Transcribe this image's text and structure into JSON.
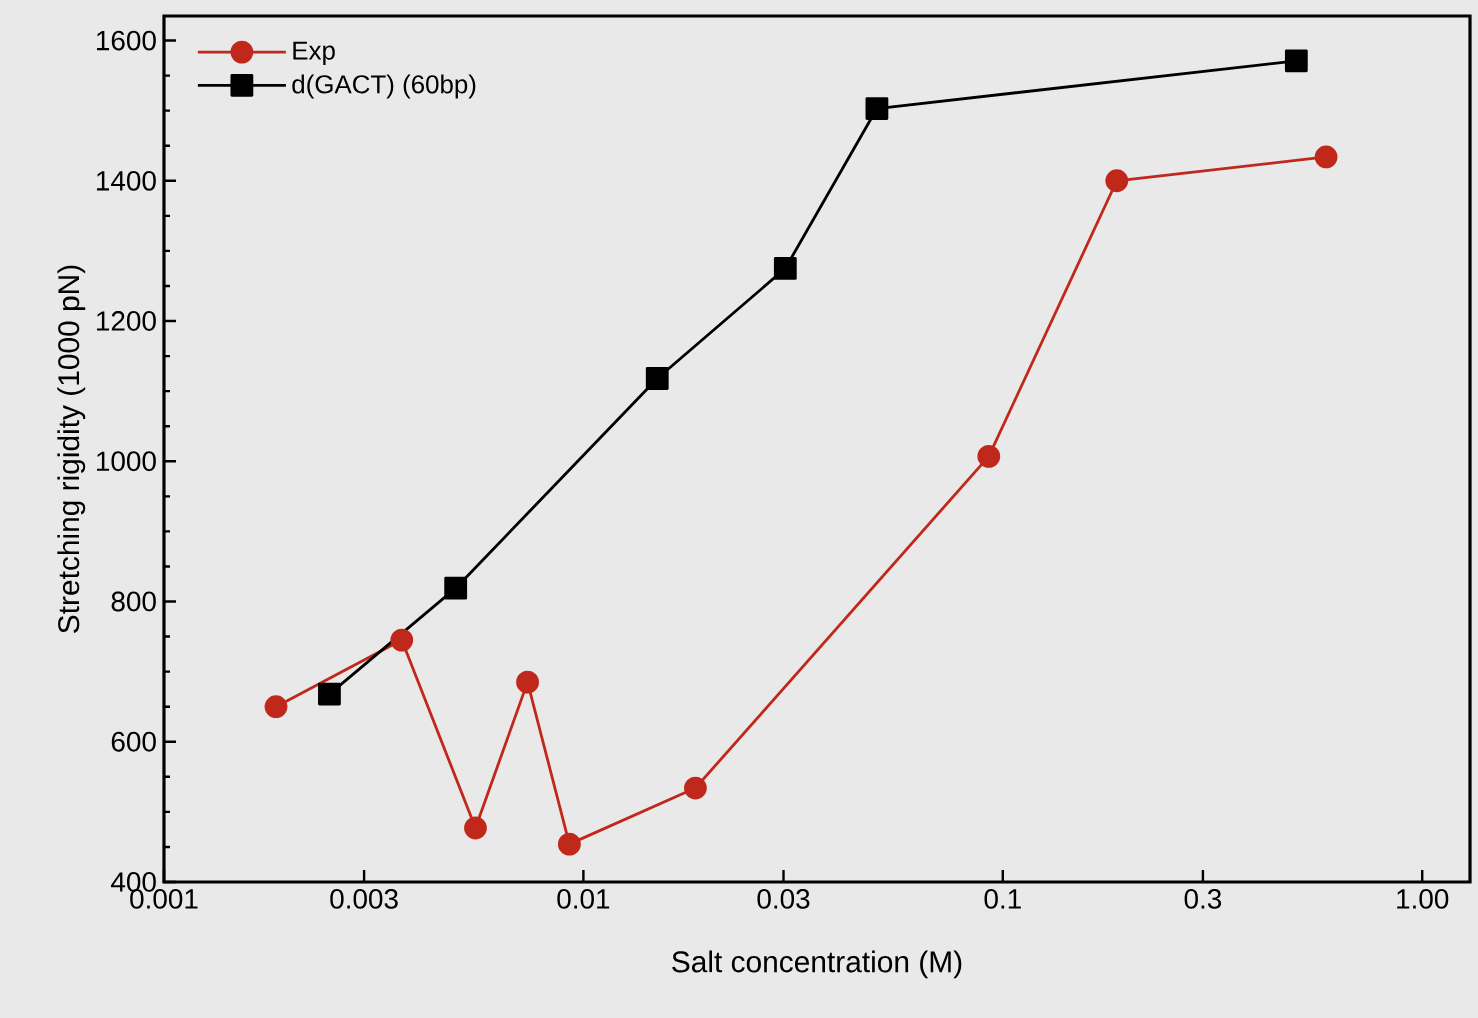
{
  "chart_data": {
    "type": "line",
    "xlabel": "Salt concentration (M)",
    "ylabel": "Stretching rigidity (1000 pN)",
    "log": "x",
    "xlim": [
      0.001,
      1.3
    ],
    "ylim": [
      400,
      1635
    ],
    "xticks": [
      0.001,
      0.003,
      0.01,
      0.03,
      0.1,
      0.3,
      {
        "value": 1,
        "label": "1.00"
      }
    ],
    "yticks": [
      400,
      600,
      800,
      1000,
      1200,
      1400,
      1600
    ],
    "grid": false,
    "legend": "top left",
    "line_style": "solid",
    "series": [
      {
        "name": "Exp",
        "color": "#c0281b",
        "marker": "circle",
        "x": [
          0.00185,
          0.00369,
          0.00553,
          0.00736,
          0.00926,
          0.0185,
          0.0926,
          0.187,
          0.59
        ],
        "values": [
          650,
          745,
          477,
          685,
          454,
          534,
          1007,
          1400,
          1434
        ]
      },
      {
        "name": "d(GACT) (60bp)",
        "color": "#000000",
        "marker": "square",
        "x": [
          0.00248,
          0.00496,
          0.015,
          0.0303,
          0.0501,
          0.501
        ],
        "values": [
          668,
          819,
          1118,
          1275,
          1503,
          1571
        ]
      }
    ]
  }
}
